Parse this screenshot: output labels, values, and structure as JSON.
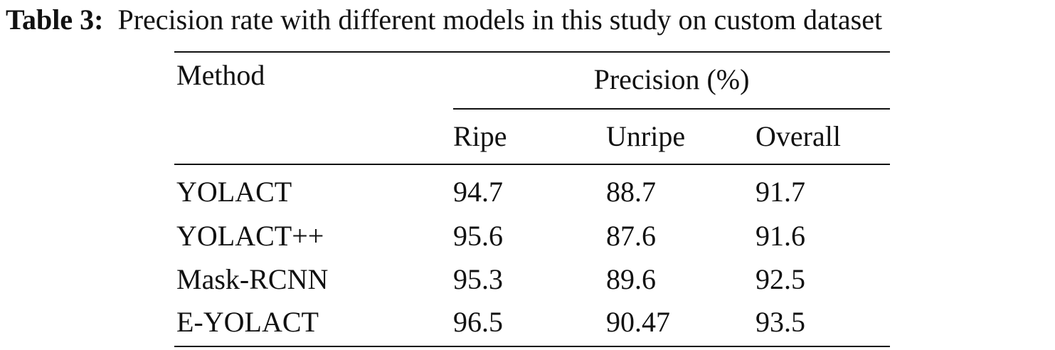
{
  "caption": {
    "label": "Table 3:",
    "text": "Precision rate with different models in this study on custom dataset"
  },
  "table": {
    "header": {
      "method": "Method",
      "group": "Precision (%)",
      "columns": [
        "Ripe",
        "Unripe",
        "Overall"
      ]
    },
    "rows": [
      [
        "YOLACT",
        "94.7",
        "88.7",
        "91.7"
      ],
      [
        "YOLACT++",
        "95.6",
        "87.6",
        "91.6"
      ],
      [
        "Mask-RCNN",
        "95.3",
        "89.6",
        "92.5"
      ],
      [
        "E-YOLACT",
        "96.5",
        "90.47",
        "93.5"
      ]
    ]
  }
}
